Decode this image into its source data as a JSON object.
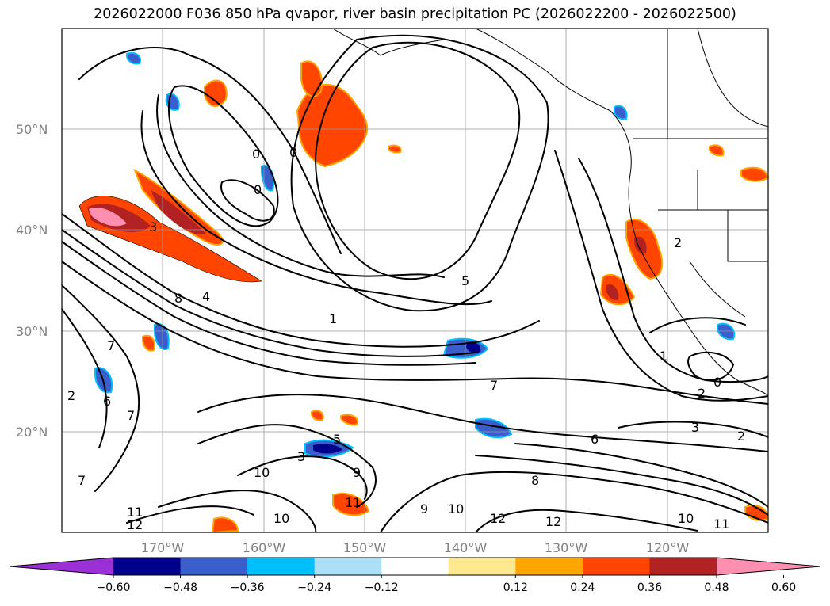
{
  "title": "2026022000 F036 850 hPa qvapor, river basin precipitation PC (2026022200 - 2026022500)",
  "lat_labels": [
    "50°N",
    "40°N",
    "30°N",
    "20°N"
  ],
  "lon_labels": [
    "170°W",
    "160°W",
    "150°W",
    "140°W",
    "130°W",
    "120°W"
  ],
  "colorbar": {
    "ticks": [
      "−0.60",
      "−0.48",
      "−0.36",
      "−0.24",
      "−0.12",
      "0.12",
      "0.24",
      "0.36",
      "0.48",
      "0.60"
    ],
    "colors": [
      "#9b30d6",
      "#00008b",
      "#3a5fcd",
      "#00bfff",
      "#ade0f8",
      "#ffffff",
      "#ffe98f",
      "#ffa500",
      "#ff4500",
      "#b22222",
      "#ff8fb0"
    ]
  },
  "contour_labels": [
    "0",
    "0",
    "0",
    "0",
    "1",
    "1",
    "2",
    "2",
    "2",
    "2",
    "3",
    "3",
    "3",
    "4",
    "5",
    "6",
    "6",
    "7",
    "7",
    "7",
    "7",
    "8",
    "8",
    "9",
    "9",
    "10",
    "10",
    "10",
    "10",
    "11",
    "11",
    "11",
    "12",
    "12",
    "12",
    "5"
  ],
  "contour_levels": [
    0,
    1,
    2,
    3,
    4,
    5,
    6,
    7,
    8,
    9,
    10,
    11,
    12
  ]
}
